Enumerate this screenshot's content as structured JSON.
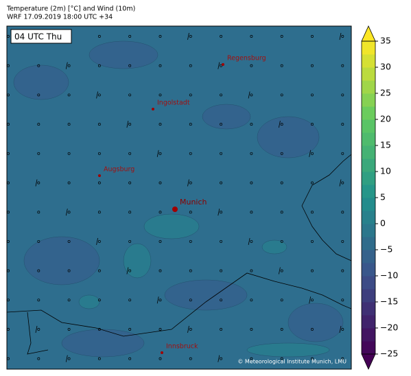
{
  "header": {
    "title": "Temperature (2m) [°C] and Wind (10m)",
    "subtitle": "WRF 17.09.2019 18:00 UTC +34"
  },
  "map": {
    "time_label": "04 UTC Thu",
    "cities": [
      {
        "name": "Regensburg"
      },
      {
        "name": "Ingolstadt"
      },
      {
        "name": "Augsburg"
      },
      {
        "name": "Munich"
      },
      {
        "name": "Innsbruck"
      }
    ],
    "credit": "© Meteorological Institute Munich, LMU"
  },
  "colorbar": {
    "colormap": "viridis",
    "extend": "both",
    "lim": [
      -25,
      35
    ],
    "step": 2.5,
    "ticks": [
      {
        "value": -25,
        "label": "−25"
      },
      {
        "value": -20,
        "label": "−20"
      },
      {
        "value": -15,
        "label": "−15"
      },
      {
        "value": -10,
        "label": "−10"
      },
      {
        "value": -5,
        "label": "−5"
      },
      0,
      5,
      10,
      15,
      20,
      25,
      30,
      35
    ]
  }
}
